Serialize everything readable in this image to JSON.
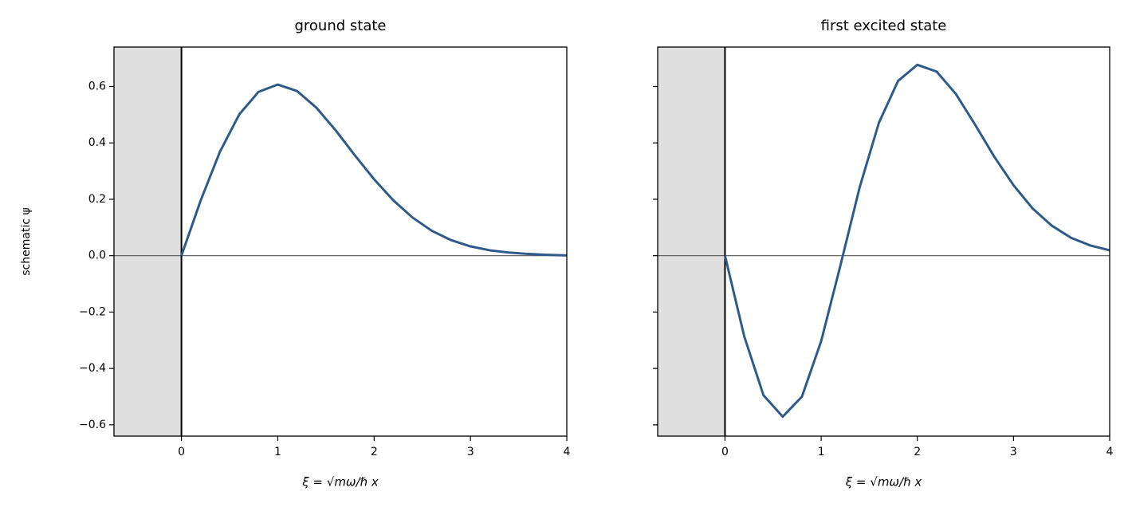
{
  "chart_data": [
    {
      "type": "line",
      "title": "ground state",
      "xlabel": "ξ = √mω/ℏ x",
      "ylabel": "schematic ψ",
      "x": [
        0,
        0.2,
        0.4,
        0.6,
        0.8,
        1.0,
        1.2,
        1.4,
        1.6,
        1.8,
        2.0,
        2.2,
        2.4,
        2.6,
        2.8,
        3.0,
        3.2,
        3.4,
        3.6,
        3.8,
        4.0
      ],
      "color": "#2f5b8a",
      "values": [
        0,
        0.196,
        0.369,
        0.501,
        0.581,
        0.607,
        0.584,
        0.525,
        0.445,
        0.356,
        0.271,
        0.196,
        0.135,
        0.088,
        0.055,
        0.033,
        0.019,
        0.011,
        0.006,
        0.003,
        0.001
      ],
      "xlim": [
        -0.7,
        4
      ],
      "xticks": [
        0,
        1,
        2,
        3,
        4
      ],
      "ylim": [
        -0.64,
        0.74
      ],
      "yticks": [
        {
          "value": -0.6,
          "label": "−0.6"
        },
        {
          "value": -0.4,
          "label": "−0.4"
        },
        {
          "value": -0.2,
          "label": "−0.2"
        },
        {
          "value": 0,
          "label": "0.0"
        },
        0.2,
        0.4,
        0.6
      ]
    },
    {
      "type": "line",
      "title": "first excited state",
      "xlabel": "ξ = √mω/ℏ x",
      "x": [
        0,
        0.2,
        0.4,
        0.6,
        0.8,
        1.0,
        1.2,
        1.4,
        1.6,
        1.8,
        2.0,
        2.2,
        2.4,
        2.6,
        2.8,
        3.0,
        3.2,
        3.4,
        3.6,
        3.8,
        4.0
      ],
      "color": "#2f5b8a",
      "values": [
        0,
        -0.286,
        -0.495,
        -0.571,
        -0.5,
        -0.303,
        -0.035,
        0.242,
        0.471,
        0.62,
        0.677,
        0.653,
        0.574,
        0.465,
        0.351,
        0.25,
        0.167,
        0.106,
        0.063,
        0.036,
        0.019
      ],
      "xlim": [
        -0.7,
        4
      ],
      "xticks": [
        0,
        1,
        2,
        3,
        4
      ],
      "ylim": [
        -0.64,
        0.74
      ],
      "yticks": [
        -0.6,
        -0.4,
        -0.2,
        0,
        0.2,
        0.4,
        0.6
      ]
    }
  ]
}
